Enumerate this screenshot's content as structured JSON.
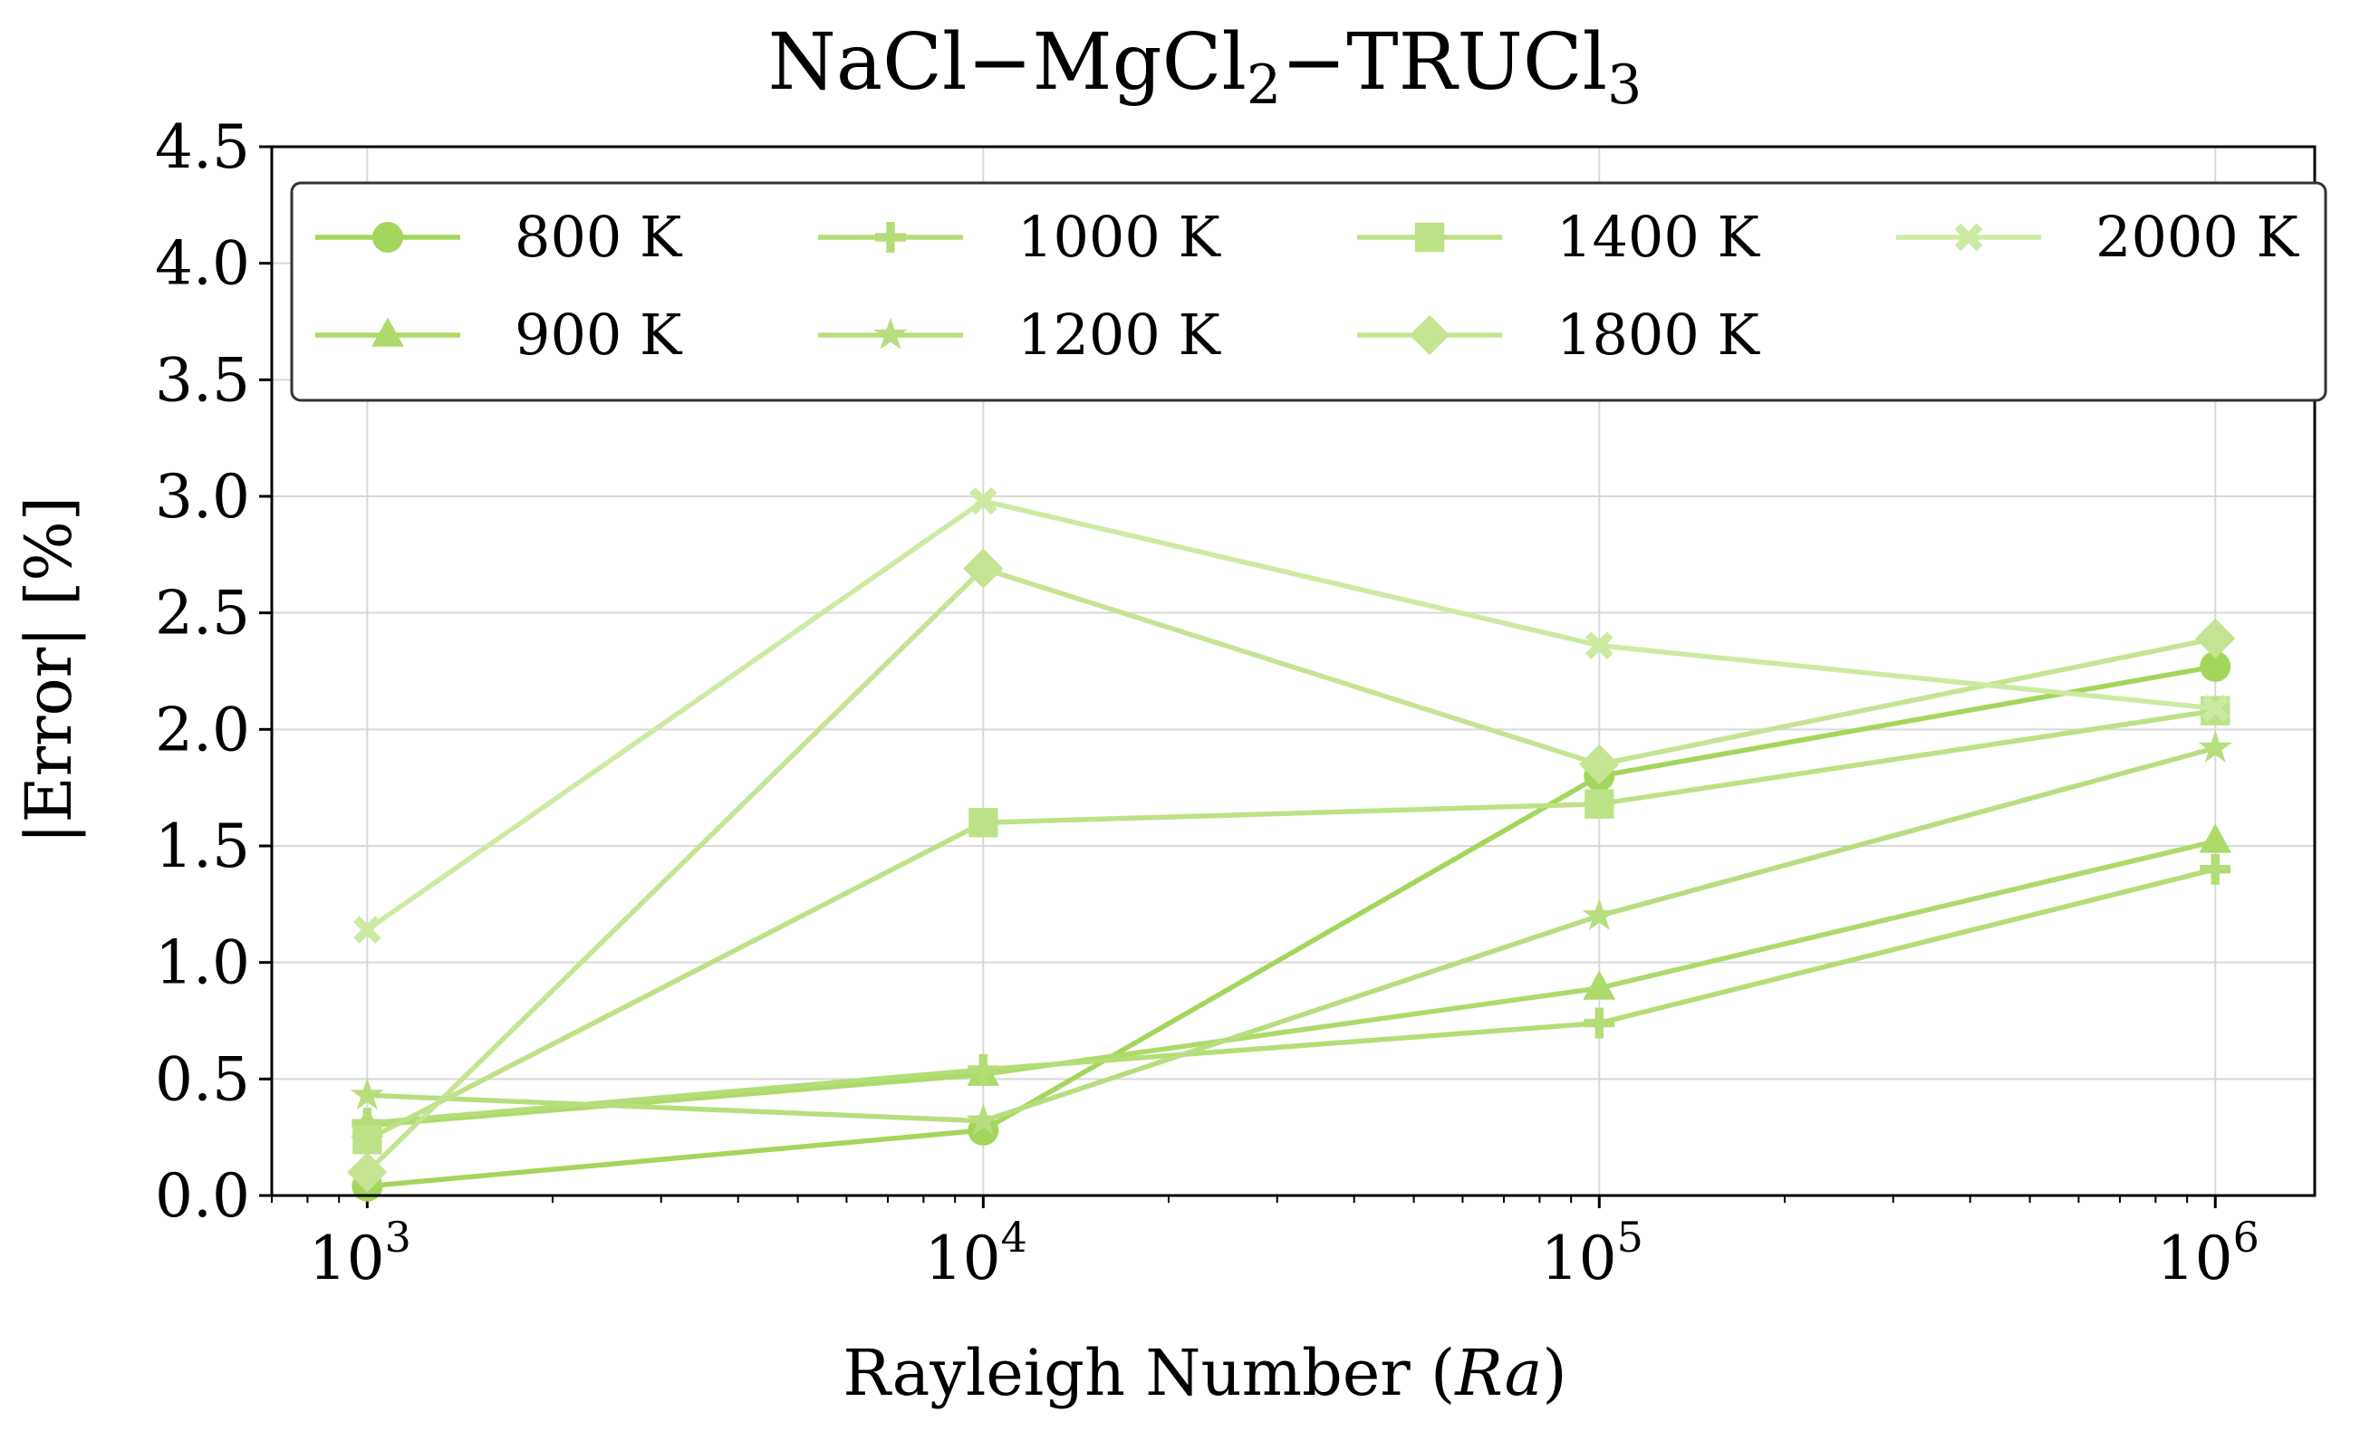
{
  "chart_data": {
    "type": "line",
    "title_parts": [
      {
        "text": "NaCl",
        "sub": ""
      },
      {
        "text": "−MgCl",
        "sub": "2"
      },
      {
        "text": "−TRUCl",
        "sub": "3"
      }
    ],
    "xlabel": "Rayleigh Number (",
    "xlabel_italic": "Ra",
    "xlabel_end": ")",
    "ylabel": "|Error| [%]",
    "xscale": "log",
    "xlim": [
      700,
      1450000
    ],
    "ylim": [
      0,
      4.5
    ],
    "x": [
      1000,
      10000,
      100000,
      1000000
    ],
    "x_tick_bases": [
      "10",
      "10",
      "10",
      "10"
    ],
    "x_tick_exponents": [
      "3",
      "4",
      "5",
      "6"
    ],
    "y_ticks": [
      "0.0",
      "0.5",
      "1.0",
      "1.5",
      "2.0",
      "2.5",
      "3.0",
      "3.5",
      "4.0",
      "4.5"
    ],
    "grid": true,
    "legend_position": "top",
    "series": [
      {
        "name": "800 K",
        "marker": "circle",
        "color": "#a3d65c",
        "values": [
          0.04,
          0.28,
          1.8,
          2.27
        ]
      },
      {
        "name": "900 K",
        "marker": "triangle",
        "color": "#acda6b",
        "values": [
          0.3,
          0.52,
          0.89,
          1.52
        ]
      },
      {
        "name": "1000 K",
        "marker": "plus",
        "color": "#b3dd77",
        "values": [
          0.31,
          0.54,
          0.74,
          1.4
        ]
      },
      {
        "name": "1200 K",
        "marker": "star",
        "color": "#b7de7e",
        "values": [
          0.43,
          0.32,
          1.2,
          1.92
        ]
      },
      {
        "name": "1400 K",
        "marker": "square",
        "color": "#bde186",
        "values": [
          0.24,
          1.6,
          1.68,
          2.08
        ]
      },
      {
        "name": "1800 K",
        "marker": "diamond",
        "color": "#c4e493",
        "values": [
          0.1,
          2.69,
          1.85,
          2.39
        ]
      },
      {
        "name": "2000 K",
        "marker": "x",
        "color": "#cdeaa3",
        "values": [
          1.14,
          2.98,
          2.36,
          2.09
        ]
      }
    ]
  }
}
